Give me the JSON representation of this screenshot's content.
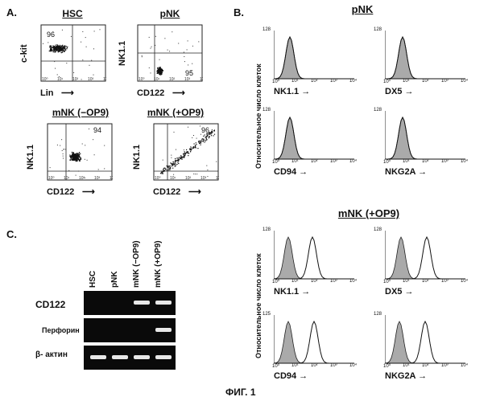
{
  "panel_a": {
    "label": "A.",
    "plots": [
      {
        "title": "HSC",
        "ylabel": "c-kit",
        "xlabel": "Lin",
        "pct": "96",
        "pct_pos": "top-left"
      },
      {
        "title": "pNK",
        "ylabel": "NK1.1",
        "xlabel": "CD122",
        "pct": "95",
        "pct_pos": "bottom-right"
      },
      {
        "title": "mNK (−OP9)",
        "ylabel": "NK1.1",
        "xlabel": "CD122",
        "pct": "94",
        "pct_pos": "top-right"
      },
      {
        "title": "mNK (+OP9)",
        "ylabel": "NK1.1",
        "xlabel": "CD122",
        "pct": "96",
        "pct_pos": "top-right"
      }
    ],
    "ticks": [
      "10⁰",
      "10¹",
      "10²",
      "10³",
      "10⁴"
    ]
  },
  "panel_b": {
    "label": "B.",
    "groups": [
      {
        "title": "pNK",
        "ylabel": "Относительное число клеток",
        "hists": [
          {
            "xlabel": "NK1.1",
            "ymax": "128"
          },
          {
            "xlabel": "DX5",
            "ymax": "128"
          },
          {
            "xlabel": "CD94",
            "ymax": "128"
          },
          {
            "xlabel": "NKG2A",
            "ymax": "128"
          }
        ]
      },
      {
        "title": "mNK (+OP9)",
        "ylabel": "Относительное число клеток",
        "hists": [
          {
            "xlabel": "NK1.1",
            "ymax": "128"
          },
          {
            "xlabel": "DX5",
            "ymax": "128"
          },
          {
            "xlabel": "CD94",
            "ymax": "125"
          },
          {
            "xlabel": "NKG2A",
            "ymax": "128"
          }
        ]
      }
    ],
    "ticks": [
      "10⁰",
      "10¹",
      "10²",
      "10³",
      "10⁴"
    ]
  },
  "panel_c": {
    "label": "C.",
    "lanes": [
      "HSC",
      "pNK",
      "mNK (−OP9)",
      "mNK (+OP9)"
    ],
    "genes": [
      {
        "name": "CD122",
        "bands": [
          0,
          0,
          1,
          1
        ]
      },
      {
        "name": "Перфорин",
        "bands": [
          0,
          0,
          0,
          1
        ]
      },
      {
        "name": "β- актин",
        "bands": [
          1,
          1,
          1,
          1
        ]
      }
    ]
  },
  "caption": "ФИГ. 1"
}
